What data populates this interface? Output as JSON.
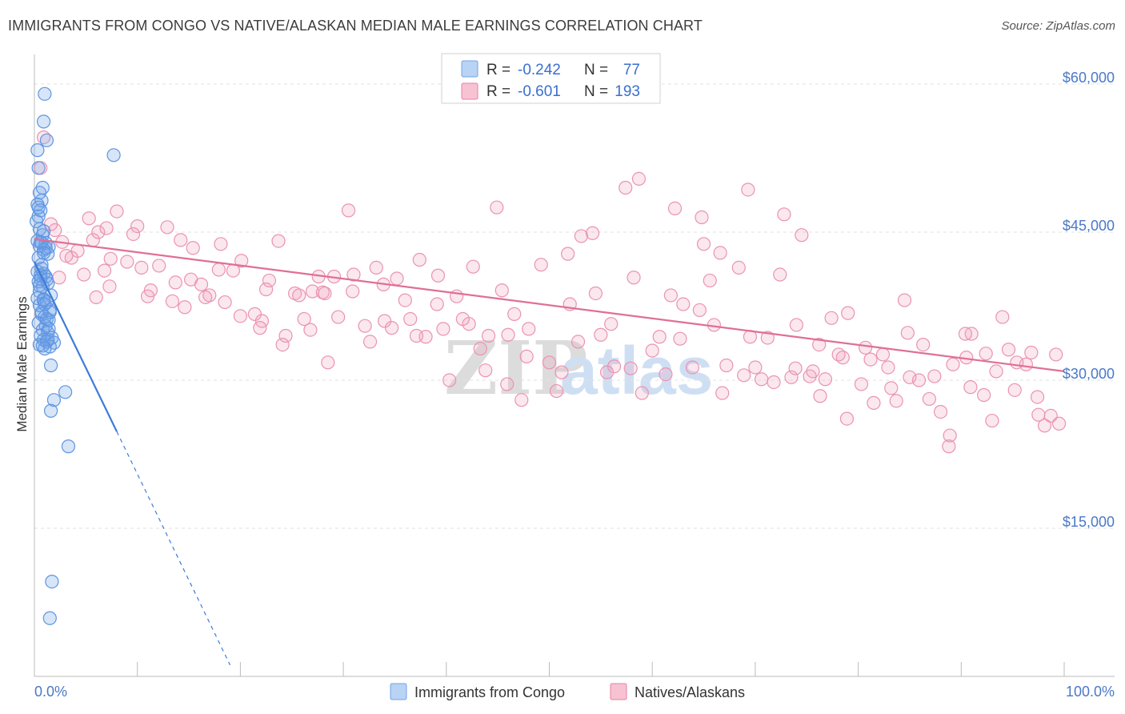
{
  "title": "IMMIGRANTS FROM CONGO VS NATIVE/ALASKAN MEDIAN MALE EARNINGS CORRELATION CHART",
  "source": "Source: ZipAtlas.com",
  "watermark": {
    "zip": "ZIP",
    "atlas": "atlas"
  },
  "legend": {
    "r_label": "R =",
    "n_label": "N =",
    "rows": [
      {
        "name": "Immigrants from Congo",
        "r": "-0.242",
        "n": "77",
        "color": "#6fa3e8",
        "fill": "#b9d3f4"
      },
      {
        "name": "Natives/Alaskans",
        "r": "-0.601",
        "n": "193",
        "color": "#e87fa0",
        "fill": "#f7c3d3"
      }
    ]
  },
  "chart_data": {
    "type": "scatter",
    "title": "IMMIGRANTS FROM CONGO VS NATIVE/ALASKAN MEDIAN MALE EARNINGS CORRELATION CHART",
    "xlabel": "",
    "ylabel": "Median Male Earnings",
    "xlim": [
      0,
      100
    ],
    "ylim": [
      0,
      63000
    ],
    "x_tick_labels": [
      "0.0%",
      "100.0%"
    ],
    "y_ticks": [
      15000,
      30000,
      45000,
      60000
    ],
    "y_tick_labels": [
      "$15,000",
      "$30,000",
      "$45,000",
      "$60,000"
    ],
    "grid": true,
    "series": [
      {
        "name": "Immigrants from Congo",
        "color": "#3d7bd8",
        "trend": {
          "x0": 0.0,
          "y0": 42000,
          "x1": 8.0,
          "y1": 24800,
          "dash_to_x": 19.0
        },
        "points": [
          [
            1.0,
            59000
          ],
          [
            0.9,
            56200
          ],
          [
            1.2,
            54300
          ],
          [
            7.7,
            52800
          ],
          [
            0.4,
            51500
          ],
          [
            0.8,
            49500
          ],
          [
            0.5,
            49000
          ],
          [
            0.7,
            48200
          ],
          [
            0.3,
            47800
          ],
          [
            0.6,
            47200
          ],
          [
            0.4,
            46600
          ],
          [
            0.2,
            46100
          ],
          [
            0.5,
            45300
          ],
          [
            0.8,
            44700
          ],
          [
            0.3,
            44100
          ],
          [
            0.7,
            43900
          ],
          [
            1.1,
            43900
          ],
          [
            0.5,
            43600
          ],
          [
            1.4,
            43500
          ],
          [
            0.9,
            43200
          ],
          [
            1.3,
            42800
          ],
          [
            0.4,
            42400
          ],
          [
            0.7,
            41300
          ],
          [
            0.3,
            41000
          ],
          [
            0.9,
            40800
          ],
          [
            1.1,
            40500
          ],
          [
            0.6,
            40300
          ],
          [
            0.4,
            40000
          ],
          [
            1.3,
            39800
          ],
          [
            0.8,
            39500
          ],
          [
            0.5,
            39000
          ],
          [
            1.6,
            38600
          ],
          [
            0.3,
            38300
          ],
          [
            0.9,
            38100
          ],
          [
            1.2,
            37900
          ],
          [
            0.5,
            37600
          ],
          [
            1.5,
            37100
          ],
          [
            0.7,
            36700
          ],
          [
            1.0,
            36400
          ],
          [
            1.4,
            36100
          ],
          [
            0.4,
            35800
          ],
          [
            1.1,
            35500
          ],
          [
            0.8,
            35100
          ],
          [
            1.3,
            34800
          ],
          [
            0.6,
            34500
          ],
          [
            1.7,
            34300
          ],
          [
            0.9,
            34100
          ],
          [
            1.2,
            33900
          ],
          [
            1.9,
            33800
          ],
          [
            0.5,
            33600
          ],
          [
            1.5,
            33400
          ],
          [
            1.0,
            33200
          ],
          [
            1.6,
            31500
          ],
          [
            3.0,
            28800
          ],
          [
            1.9,
            28000
          ],
          [
            1.6,
            26900
          ],
          [
            3.3,
            23300
          ],
          [
            1.7,
            9600
          ],
          [
            1.5,
            5900
          ],
          [
            0.6,
            40600
          ],
          [
            1.2,
            40200
          ],
          [
            0.9,
            38200
          ],
          [
            1.4,
            35200
          ],
          [
            0.7,
            36900
          ],
          [
            1.1,
            43400
          ],
          [
            0.4,
            47500
          ],
          [
            0.9,
            42900
          ],
          [
            0.6,
            44000
          ],
          [
            1.3,
            34100
          ],
          [
            0.8,
            33500
          ],
          [
            1.0,
            37700
          ],
          [
            0.5,
            39600
          ],
          [
            1.2,
            36200
          ],
          [
            0.7,
            41700
          ],
          [
            1.5,
            36900
          ],
          [
            0.9,
            45100
          ],
          [
            0.3,
            53300
          ]
        ]
      },
      {
        "name": "Natives/Alaskans",
        "color": "#e06f93",
        "trend": {
          "x0": 0.0,
          "y0": 44300,
          "x1": 100.0,
          "y1": 30900
        },
        "points": [
          [
            0.9,
            54600
          ],
          [
            0.6,
            51500
          ],
          [
            2.0,
            45200
          ],
          [
            1.6,
            45800
          ],
          [
            2.7,
            44000
          ],
          [
            5.7,
            44200
          ],
          [
            4.2,
            43100
          ],
          [
            6.2,
            45000
          ],
          [
            7.4,
            42300
          ],
          [
            8.0,
            47100
          ],
          [
            3.6,
            42400
          ],
          [
            9.6,
            44800
          ],
          [
            10.4,
            41400
          ],
          [
            11.3,
            39100
          ],
          [
            12.9,
            45500
          ],
          [
            14.2,
            44200
          ],
          [
            13.7,
            39900
          ],
          [
            15.2,
            40200
          ],
          [
            16.2,
            39700
          ],
          [
            17.0,
            38600
          ],
          [
            18.1,
            43800
          ],
          [
            19.3,
            41100
          ],
          [
            20.1,
            42100
          ],
          [
            21.4,
            36700
          ],
          [
            22.5,
            39200
          ],
          [
            22.1,
            36000
          ],
          [
            23.7,
            44100
          ],
          [
            24.4,
            34500
          ],
          [
            25.3,
            38800
          ],
          [
            26.2,
            36200
          ],
          [
            27.0,
            39000
          ],
          [
            28.0,
            38900
          ],
          [
            28.2,
            38800
          ],
          [
            29.5,
            36400
          ],
          [
            30.5,
            47200
          ],
          [
            31.0,
            40700
          ],
          [
            32.1,
            35500
          ],
          [
            33.2,
            41400
          ],
          [
            34.0,
            36000
          ],
          [
            35.2,
            40300
          ],
          [
            36.0,
            38100
          ],
          [
            37.4,
            42200
          ],
          [
            38.0,
            34400
          ],
          [
            39.1,
            37700
          ],
          [
            40.3,
            30000
          ],
          [
            41.0,
            38500
          ],
          [
            42.2,
            35700
          ],
          [
            43.3,
            33200
          ],
          [
            44.1,
            34500
          ],
          [
            45.4,
            39100
          ],
          [
            46.0,
            34600
          ],
          [
            47.3,
            28000
          ],
          [
            48.0,
            35200
          ],
          [
            49.2,
            41700
          ],
          [
            50.0,
            31800
          ],
          [
            51.2,
            30800
          ],
          [
            52.0,
            37700
          ],
          [
            53.1,
            44600
          ],
          [
            54.5,
            38800
          ],
          [
            55.0,
            34600
          ],
          [
            56.3,
            31400
          ],
          [
            57.4,
            49500
          ],
          [
            58.2,
            40400
          ],
          [
            59.0,
            28700
          ],
          [
            60.0,
            33000
          ],
          [
            61.3,
            30600
          ],
          [
            62.2,
            47400
          ],
          [
            63.0,
            37700
          ],
          [
            63.9,
            31300
          ],
          [
            65.0,
            43800
          ],
          [
            66.0,
            35600
          ],
          [
            67.2,
            31500
          ],
          [
            68.4,
            41400
          ],
          [
            69.5,
            34400
          ],
          [
            70.0,
            31300
          ],
          [
            71.2,
            34300
          ],
          [
            72.4,
            40700
          ],
          [
            73.5,
            30300
          ],
          [
            74.0,
            35600
          ],
          [
            75.3,
            30400
          ],
          [
            76.2,
            33600
          ],
          [
            77.4,
            36300
          ],
          [
            78.5,
            32300
          ],
          [
            79.0,
            36800
          ],
          [
            80.3,
            29600
          ],
          [
            81.5,
            27700
          ],
          [
            82.4,
            32600
          ],
          [
            83.2,
            29200
          ],
          [
            84.5,
            38100
          ],
          [
            85.0,
            30300
          ],
          [
            86.3,
            33600
          ],
          [
            87.4,
            30400
          ],
          [
            88.0,
            26800
          ],
          [
            89.2,
            31600
          ],
          [
            90.5,
            32300
          ],
          [
            91.0,
            34700
          ],
          [
            92.2,
            28500
          ],
          [
            93.4,
            30900
          ],
          [
            94.0,
            36400
          ],
          [
            95.2,
            29000
          ],
          [
            96.3,
            31600
          ],
          [
            97.4,
            28300
          ],
          [
            98.1,
            25400
          ],
          [
            99.2,
            32600
          ],
          [
            2.4,
            40400
          ],
          [
            3.1,
            42600
          ],
          [
            4.8,
            40700
          ],
          [
            6.0,
            38400
          ],
          [
            6.8,
            41100
          ],
          [
            7.3,
            39500
          ],
          [
            9.0,
            42000
          ],
          [
            11.0,
            38500
          ],
          [
            12.1,
            41600
          ],
          [
            13.4,
            38000
          ],
          [
            14.6,
            37400
          ],
          [
            16.6,
            38400
          ],
          [
            18.5,
            37900
          ],
          [
            20.0,
            36500
          ],
          [
            21.9,
            35300
          ],
          [
            24.1,
            33600
          ],
          [
            26.8,
            35100
          ],
          [
            28.5,
            31800
          ],
          [
            29.1,
            40500
          ],
          [
            30.9,
            39000
          ],
          [
            32.6,
            33900
          ],
          [
            34.7,
            35300
          ],
          [
            37.1,
            34500
          ],
          [
            39.7,
            35200
          ],
          [
            41.6,
            36200
          ],
          [
            43.8,
            31000
          ],
          [
            45.9,
            29600
          ],
          [
            47.8,
            32400
          ],
          [
            50.7,
            28900
          ],
          [
            52.8,
            33900
          ],
          [
            55.6,
            30800
          ],
          [
            57.9,
            31200
          ],
          [
            60.7,
            34400
          ],
          [
            62.7,
            34200
          ],
          [
            64.6,
            37100
          ],
          [
            66.8,
            28700
          ],
          [
            68.9,
            30500
          ],
          [
            71.8,
            29800
          ],
          [
            73.9,
            31200
          ],
          [
            76.8,
            30100
          ],
          [
            78.9,
            26100
          ],
          [
            81.2,
            32100
          ],
          [
            83.7,
            27900
          ],
          [
            85.9,
            30000
          ],
          [
            88.8,
            23300
          ],
          [
            90.9,
            29300
          ],
          [
            93.0,
            25900
          ],
          [
            94.6,
            33100
          ],
          [
            96.8,
            32800
          ],
          [
            98.7,
            26400
          ],
          [
            44.9,
            47500
          ],
          [
            54.2,
            44900
          ],
          [
            58.7,
            50400
          ],
          [
            64.8,
            46500
          ],
          [
            66.6,
            42900
          ],
          [
            69.3,
            49300
          ],
          [
            72.8,
            46800
          ],
          [
            74.5,
            44700
          ],
          [
            76.3,
            28400
          ],
          [
            78.1,
            32600
          ],
          [
            80.7,
            33300
          ],
          [
            82.9,
            31300
          ],
          [
            84.8,
            34800
          ],
          [
            86.9,
            28100
          ],
          [
            88.9,
            24400
          ],
          [
            90.4,
            34700
          ],
          [
            92.4,
            32700
          ],
          [
            95.4,
            31800
          ],
          [
            97.5,
            26500
          ],
          [
            99.5,
            25600
          ],
          [
            5.3,
            46400
          ],
          [
            7.0,
            45400
          ],
          [
            10.0,
            45600
          ],
          [
            15.4,
            43400
          ],
          [
            17.9,
            41200
          ],
          [
            22.8,
            40100
          ],
          [
            25.7,
            38600
          ],
          [
            27.6,
            40500
          ],
          [
            33.9,
            39700
          ],
          [
            36.5,
            36200
          ],
          [
            39.2,
            40600
          ],
          [
            42.6,
            41500
          ],
          [
            46.6,
            36700
          ],
          [
            51.8,
            42800
          ],
          [
            56.0,
            35700
          ],
          [
            61.8,
            38600
          ],
          [
            65.6,
            40100
          ],
          [
            70.6,
            30100
          ],
          [
            75.6,
            30900
          ]
        ]
      }
    ]
  }
}
